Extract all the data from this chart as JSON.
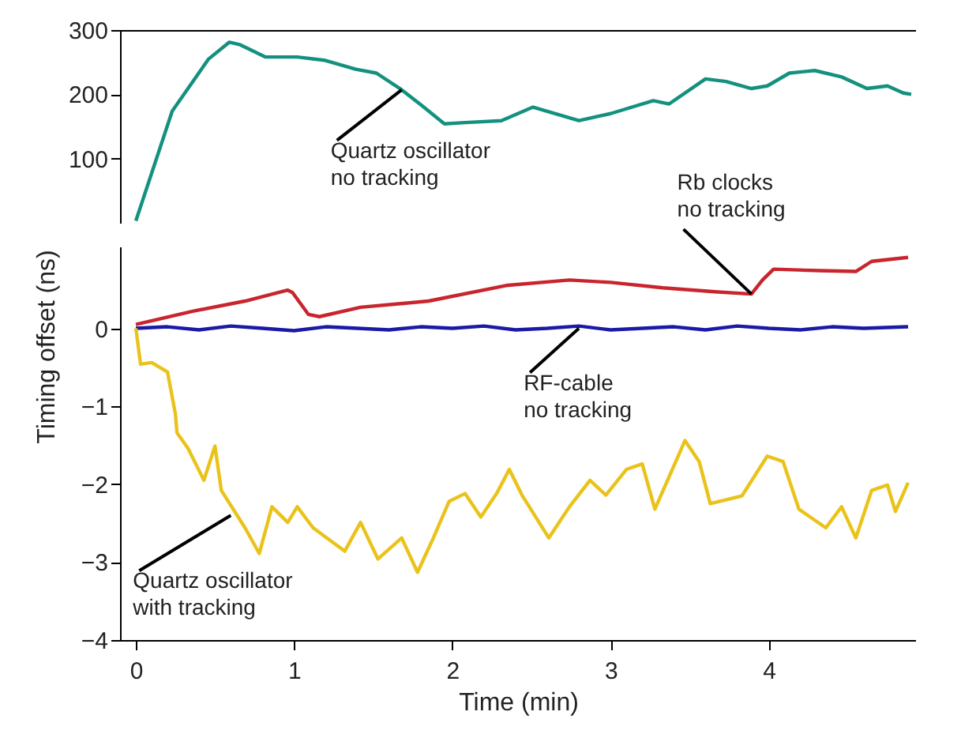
{
  "chart_data": [
    {
      "type": "line",
      "xlim": [
        -0.1,
        4.93
      ],
      "ylim": [
        0,
        300
      ],
      "yticks": [
        100,
        200,
        300
      ],
      "tick_labels": "y",
      "series": [
        {
          "color": "#13917e",
          "x": [
            0,
            0.23,
            0.46,
            0.59,
            0.66,
            0.82,
            1.02,
            1.19,
            1.39,
            1.52,
            1.68,
            1.81,
            1.95,
            2.08,
            2.31,
            2.51,
            2.8,
            3.0,
            3.27,
            3.37,
            3.6,
            3.73,
            3.89,
            3.99,
            4.13,
            4.29,
            4.46,
            4.62,
            4.75,
            4.85,
            4.9
          ],
          "values": [
            3,
            174,
            255,
            281,
            277,
            258,
            258,
            253,
            239,
            233,
            207,
            182,
            154,
            156,
            159,
            180,
            159,
            170,
            190,
            185,
            224,
            220,
            209,
            213,
            233,
            237,
            227,
            209,
            213,
            202,
            200
          ]
        }
      ],
      "annotations": [
        {
          "text": "Quartz oscillator\nno tracking",
          "x": 1.68,
          "y": 207
        }
      ]
    },
    {
      "type": "line",
      "xlim": [
        -0.1,
        4.93
      ],
      "ylim": [
        -4,
        1.05
      ],
      "xticks": [
        0,
        1,
        2,
        3,
        4
      ],
      "yticks": [
        -4,
        -3,
        -2,
        -1,
        0
      ],
      "xlabel": "Time (min)",
      "ylabel": "Timing offset (ns)",
      "series": [
        {
          "color": "#c8252d",
          "x": [
            0,
            0.36,
            0.69,
            0.96,
            0.99,
            1.09,
            1.16,
            1.42,
            1.85,
            2.34,
            2.74,
            3.0,
            3.33,
            3.66,
            3.89,
            3.96,
            4.03,
            4.32,
            4.55,
            4.65,
            4.88
          ],
          "values": [
            0.05,
            0.22,
            0.35,
            0.49,
            0.46,
            0.18,
            0.15,
            0.27,
            0.35,
            0.55,
            0.62,
            0.59,
            0.52,
            0.47,
            0.44,
            0.62,
            0.76,
            0.74,
            0.73,
            0.86,
            0.91
          ]
        },
        {
          "color": "#1a1aa6",
          "x": [
            0,
            0.2,
            0.4,
            0.6,
            0.8,
            1.0,
            1.2,
            1.4,
            1.6,
            1.8,
            2.0,
            2.2,
            2.4,
            2.6,
            2.8,
            3.0,
            3.2,
            3.4,
            3.6,
            3.8,
            4.0,
            4.2,
            4.4,
            4.6,
            4.88
          ],
          "values": [
            0,
            0.02,
            -0.02,
            0.03,
            0,
            -0.03,
            0.02,
            0,
            -0.02,
            0.02,
            0,
            0.03,
            -0.02,
            0,
            0.03,
            -0.02,
            0,
            0.02,
            -0.02,
            0.03,
            0,
            -0.02,
            0.02,
            0,
            0.02
          ]
        },
        {
          "color": "#eac31a",
          "x": [
            0,
            0.03,
            0.1,
            0.2,
            0.25,
            0.26,
            0.33,
            0.43,
            0.5,
            0.54,
            0.69,
            0.78,
            0.86,
            0.96,
            1.02,
            1.12,
            1.32,
            1.42,
            1.53,
            1.68,
            1.78,
            1.88,
            1.98,
            2.08,
            2.18,
            2.28,
            2.36,
            2.44,
            2.61,
            2.74,
            2.87,
            2.97,
            3.1,
            3.2,
            3.28,
            3.47,
            3.56,
            3.63,
            3.83,
            3.99,
            4.09,
            4.19,
            4.36,
            4.46,
            4.55,
            4.65,
            4.75,
            4.8,
            4.88
          ],
          "values": [
            0,
            -0.46,
            -0.44,
            -0.56,
            -1.1,
            -1.34,
            -1.54,
            -1.95,
            -1.51,
            -2.08,
            -2.56,
            -2.89,
            -2.29,
            -2.49,
            -2.29,
            -2.56,
            -2.86,
            -2.49,
            -2.96,
            -2.69,
            -3.13,
            -2.69,
            -2.22,
            -2.12,
            -2.42,
            -2.12,
            -1.81,
            -2.14,
            -2.69,
            -2.29,
            -1.95,
            -2.14,
            -1.81,
            -1.74,
            -2.32,
            -1.44,
            -1.71,
            -2.25,
            -2.15,
            -1.64,
            -1.71,
            -2.32,
            -2.56,
            -2.29,
            -2.69,
            -2.08,
            -2.01,
            -2.35,
            -1.98
          ]
        }
      ],
      "annotations": [
        {
          "text": "Rb clocks\nno tracking",
          "x": 3.89,
          "y": 0.44
        },
        {
          "text": "RF-cable\nno tracking",
          "x": 2.8,
          "y": 0
        },
        {
          "text": "Quartz oscillator\nwith tracking",
          "x": 0.6,
          "y": -2.4
        }
      ]
    }
  ]
}
